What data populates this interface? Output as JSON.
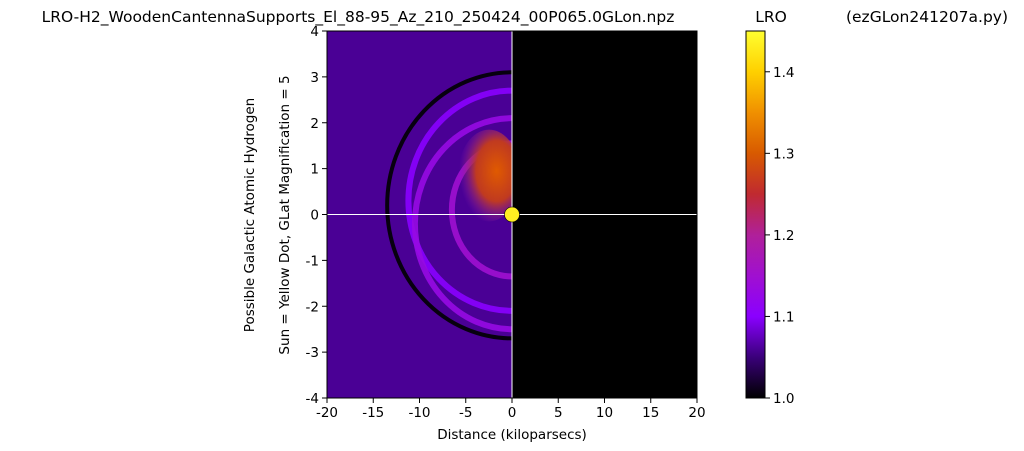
{
  "figure": {
    "title": "LRO-H2_WoodenCantennaSupports_El_88-95_Az_210_250424_00P065.0GLon.npz",
    "colorbar_label": "LRO",
    "script_label": "(ezGLon241207a.py)"
  },
  "chart_data": {
    "type": "heatmap",
    "title": "LRO-H2_WoodenCantennaSupports_El_88-95_Az_210_250424_00P065.0GLon.npz",
    "xlabel": "Distance (kiloparsecs)",
    "ylabel_lines": [
      "Possible Galactic Atomic Hydrogen",
      "Sun = Yellow Dot, GLat Magnification = 5"
    ],
    "xlim": [
      -20,
      20
    ],
    "ylim": [
      -4,
      4
    ],
    "x_ticks": [
      -20,
      -15,
      -10,
      -5,
      0,
      5,
      10,
      15,
      20
    ],
    "y_ticks": [
      -4,
      -3,
      -2,
      -1,
      0,
      1,
      2,
      3,
      4
    ],
    "sun_position": [
      0,
      0
    ],
    "sun_color": "#ffee22",
    "crosshair_lines": {
      "x": 0,
      "y": 0,
      "color": "#ffffff"
    },
    "colorbar": {
      "label": "LRO",
      "range": [
        1.0,
        1.45
      ],
      "ticks": [
        1.0,
        1.1,
        1.2,
        1.3,
        1.4
      ],
      "colormap": "gnuplot",
      "colors": [
        "#000000",
        "#3a007a",
        "#8a00ff",
        "#a010d0",
        "#b0209a",
        "#c02a30",
        "#d85a00",
        "#f09000",
        "#ffd000",
        "#ffff30"
      ]
    },
    "background_value": 1.06,
    "features": [
      {
        "name": "outer arc",
        "center": [
          0,
          0.2
        ],
        "radius_kpc": 13.5,
        "radius_y": 2.9,
        "value": 1.0
      },
      {
        "name": "upper ring",
        "center": [
          0,
          0.3
        ],
        "radius_kpc": 11.2,
        "radius_y": 2.4,
        "value": 1.1
      },
      {
        "name": "lower ring",
        "center": [
          0,
          -0.2
        ],
        "radius_kpc": 10.5,
        "radius_y": 2.3,
        "value": 1.13
      },
      {
        "name": "inner ring",
        "center": [
          0,
          0.1
        ],
        "radius_kpc": 6.5,
        "radius_y": 1.45,
        "value": 1.15
      },
      {
        "name": "core",
        "center": [
          -3,
          0.85
        ],
        "radius_kpc": 4.5,
        "radius_y": 1.0,
        "value": 1.33
      }
    ]
  }
}
